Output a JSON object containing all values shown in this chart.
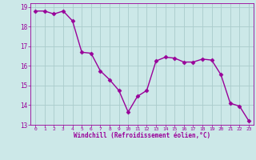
{
  "x": [
    0,
    1,
    2,
    3,
    4,
    5,
    6,
    7,
    8,
    9,
    10,
    11,
    12,
    13,
    14,
    15,
    16,
    17,
    18,
    19,
    20,
    21,
    22,
    23
  ],
  "y": [
    18.8,
    18.8,
    18.65,
    18.8,
    18.3,
    16.7,
    16.65,
    15.75,
    15.3,
    14.75,
    13.65,
    14.45,
    14.75,
    16.25,
    16.45,
    16.4,
    16.2,
    16.2,
    16.35,
    16.3,
    15.55,
    14.1,
    13.95,
    13.2
  ],
  "xlabel": "Windchill (Refroidissement éolien,°C)",
  "ylim": [
    13,
    19.2
  ],
  "xlim": [
    -0.5,
    23.5
  ],
  "yticks": [
    13,
    14,
    15,
    16,
    17,
    18,
    19
  ],
  "xticks": [
    0,
    1,
    2,
    3,
    4,
    5,
    6,
    7,
    8,
    9,
    10,
    11,
    12,
    13,
    14,
    15,
    16,
    17,
    18,
    19,
    20,
    21,
    22,
    23
  ],
  "line_color": "#990099",
  "marker_color": "#990099",
  "bg_color": "#cce8e8",
  "grid_color": "#aacccc",
  "axis_color": "#990099",
  "tick_color": "#990099",
  "label_color": "#990099"
}
